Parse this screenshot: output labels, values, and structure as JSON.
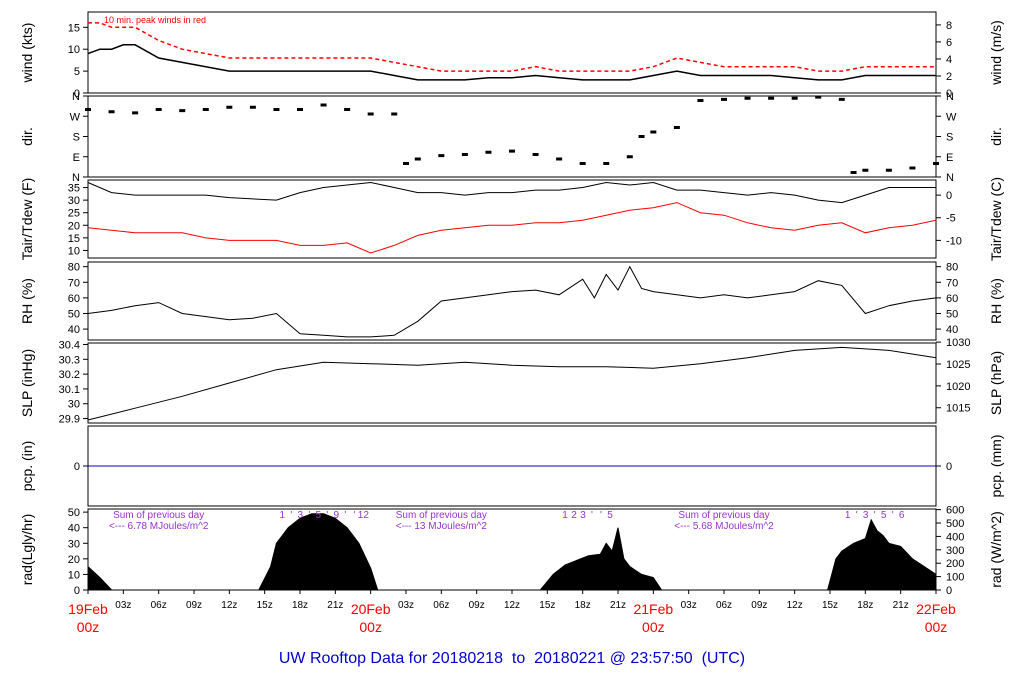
{
  "title": "UW Rooftop Data for 20180218  to  20180221 @ 23:57:50  (UTC)",
  "colors": {
    "axis": "#000000",
    "red": "#ff0000",
    "blue": "#0000cc",
    "purple": "#9933cc",
    "pcp_line": "#0000cc"
  },
  "time_axis": {
    "major_labels": [
      {
        "hour": 0,
        "date": "19Feb",
        "zone": "00z"
      },
      {
        "hour": 24,
        "date": "20Feb",
        "zone": "00z"
      },
      {
        "hour": 48,
        "date": "21Feb",
        "zone": "00z"
      },
      {
        "hour": 72,
        "date": "22Feb",
        "zone": "00z"
      }
    ],
    "minor_labels": [
      "03z",
      "06z",
      "09z",
      "12z",
      "15z",
      "18z",
      "21z"
    ]
  },
  "chart_data": [
    {
      "type": "line",
      "panel": "wind",
      "ylabel": "wind (kts)",
      "ylabel_right": "wind (m/s)",
      "ylim": [
        0,
        18.5
      ],
      "yticks": [
        0,
        5,
        10,
        15
      ],
      "yticks_right": [
        0,
        2,
        4,
        6,
        8
      ],
      "annotation": "10 min. peak winds in red",
      "x": [
        0,
        1,
        2,
        3,
        4,
        6,
        8,
        10,
        12,
        14,
        16,
        18,
        20,
        22,
        24,
        26,
        28,
        30,
        32,
        34,
        36,
        38,
        40,
        42,
        44,
        46,
        48,
        50,
        52,
        54,
        56,
        58,
        60,
        62,
        64,
        66,
        68,
        70,
        72
      ],
      "series": [
        {
          "values": [
            9,
            10,
            10,
            11,
            11,
            8,
            7,
            6,
            5,
            5,
            5,
            5,
            5,
            5,
            5,
            4,
            3,
            3,
            3,
            3.5,
            3.5,
            4,
            3.5,
            3,
            3,
            3,
            4,
            5,
            4,
            4,
            4,
            4,
            3.5,
            3,
            3,
            4,
            4,
            4,
            4
          ],
          "color": "#000000"
        },
        {
          "values": [
            16,
            16,
            15,
            15,
            15,
            12,
            10,
            9,
            8,
            8,
            8,
            8,
            8,
            8,
            8,
            7,
            6,
            5,
            5,
            5,
            5,
            6,
            5,
            5,
            5,
            5,
            6,
            8,
            7,
            6,
            6,
            6,
            6,
            5,
            5,
            6,
            6,
            6,
            6
          ],
          "color": "#ff0000"
        }
      ]
    },
    {
      "type": "scatter",
      "panel": "dir",
      "ylabel": "dir.",
      "ylabel_right": "dir.",
      "ylim": [
        0,
        360
      ],
      "ytick_labels": [
        "N",
        "E",
        "S",
        "W",
        "N"
      ],
      "x": [
        0,
        2,
        4,
        6,
        8,
        10,
        12,
        14,
        16,
        18,
        20,
        22,
        24,
        26,
        27,
        28,
        30,
        32,
        34,
        36,
        38,
        40,
        42,
        44,
        46,
        47,
        48,
        50,
        52,
        54,
        56,
        58,
        60,
        62,
        64,
        65,
        66,
        68,
        70,
        72
      ],
      "values": [
        300,
        290,
        285,
        300,
        295,
        300,
        310,
        310,
        300,
        300,
        320,
        300,
        280,
        280,
        60,
        80,
        95,
        100,
        110,
        115,
        100,
        80,
        60,
        60,
        90,
        180,
        200,
        220,
        340,
        345,
        350,
        350,
        350,
        355,
        345,
        20,
        30,
        30,
        40,
        60
      ]
    },
    {
      "type": "line",
      "panel": "temperature",
      "ylabel": "Tair/Tdew (F)",
      "ylabel_right": "Tair/Tdew (C)",
      "ylim": [
        7,
        38
      ],
      "yticks": [
        10,
        15,
        20,
        25,
        30,
        35
      ],
      "yticks_right": [
        0,
        -5,
        -10
      ],
      "x": [
        0,
        2,
        4,
        6,
        8,
        10,
        12,
        14,
        16,
        18,
        20,
        22,
        24,
        26,
        28,
        30,
        32,
        34,
        36,
        38,
        40,
        42,
        44,
        46,
        48,
        50,
        52,
        54,
        56,
        58,
        60,
        62,
        64,
        66,
        68,
        70,
        72
      ],
      "series": [
        {
          "values": [
            37,
            33,
            32,
            32,
            32,
            32,
            31,
            30.5,
            30,
            33,
            35,
            36,
            37,
            35,
            33,
            33,
            32,
            33,
            33,
            34,
            34,
            35,
            37,
            36,
            37,
            34,
            34,
            33,
            32,
            33,
            32,
            30,
            29,
            32,
            35,
            35,
            35
          ],
          "color": "#000000"
        },
        {
          "values": [
            19,
            18,
            17,
            17,
            17,
            15,
            14,
            14,
            14,
            12,
            12,
            13,
            9,
            12,
            16,
            18,
            19,
            20,
            20,
            21,
            21,
            22,
            24,
            26,
            27,
            29,
            25,
            24,
            21,
            19,
            18,
            20,
            21,
            17,
            19,
            20,
            22
          ],
          "color": "#ff0000"
        }
      ]
    },
    {
      "type": "line",
      "panel": "rh",
      "ylabel": "RH (%)",
      "ylabel_right": "RH (%)",
      "ylim": [
        33,
        83
      ],
      "yticks": [
        40,
        50,
        60,
        70,
        80
      ],
      "yticks_right": [
        40,
        50,
        60,
        70,
        80
      ],
      "x": [
        0,
        2,
        4,
        6,
        8,
        10,
        12,
        14,
        16,
        18,
        20,
        22,
        24,
        26,
        28,
        30,
        32,
        34,
        36,
        38,
        40,
        42,
        43,
        44,
        45,
        46,
        47,
        48,
        50,
        52,
        54,
        56,
        58,
        60,
        62,
        64,
        66,
        68,
        70,
        72
      ],
      "values": [
        50,
        52,
        55,
        57,
        50,
        48,
        46,
        47,
        50,
        37,
        36,
        35,
        35,
        36,
        45,
        58,
        60,
        62,
        64,
        65,
        62,
        72,
        60,
        75,
        65,
        80,
        66,
        64,
        62,
        60,
        62,
        60,
        62,
        64,
        71,
        68,
        50,
        55,
        58,
        60
      ],
      "color": "#000000"
    },
    {
      "type": "line",
      "panel": "slp",
      "ylabel": "SLP (inHg)",
      "ylabel_right": "SLP (hPa)",
      "ylim": [
        29.87,
        30.41
      ],
      "yticks": [
        29.9,
        30.0,
        30.1,
        30.2,
        30.3,
        30.4
      ],
      "yticks_right": [
        1015,
        1020,
        1025,
        1030
      ],
      "x": [
        0,
        4,
        8,
        12,
        16,
        20,
        24,
        28,
        32,
        36,
        40,
        44,
        48,
        52,
        56,
        60,
        64,
        68,
        72
      ],
      "values": [
        29.89,
        29.97,
        30.05,
        30.14,
        30.23,
        30.28,
        30.27,
        30.26,
        30.28,
        30.26,
        30.25,
        30.25,
        30.24,
        30.27,
        30.31,
        30.36,
        30.38,
        30.36,
        30.31
      ],
      "color": "#000000"
    },
    {
      "type": "line",
      "panel": "pcp",
      "ylabel": "pcp. (in)",
      "ylabel_right": "pcp. (mm)",
      "ytick_labels": [
        "0"
      ],
      "ytick_labels_right": [
        "0"
      ],
      "x": [
        0,
        72
      ],
      "values": [
        0,
        0
      ],
      "color": "#0000cc"
    },
    {
      "type": "area",
      "panel": "rad",
      "ylabel": "rad(Lgly/hr)",
      "ylabel_right": "rad (W/m^2)",
      "ylim": [
        0,
        52
      ],
      "yticks": [
        0,
        10,
        20,
        30,
        40,
        50
      ],
      "yticks_right": [
        0,
        100,
        200,
        300,
        400,
        500,
        600
      ],
      "x": [
        0,
        1,
        2,
        14.5,
        15.5,
        16,
        17,
        18,
        19,
        20,
        21,
        22,
        23,
        24,
        24.6,
        38.4,
        39.5,
        40.5,
        41.5,
        42.5,
        43.5,
        44,
        44.5,
        45,
        45.5,
        46,
        47,
        48,
        48.7,
        62.8,
        63.5,
        64,
        65,
        66,
        66.5,
        67,
        67.5,
        68,
        69,
        70,
        71,
        72
      ],
      "values": [
        15,
        8,
        0,
        0,
        15,
        30,
        40,
        46,
        49,
        49,
        46,
        40,
        30,
        14,
        0,
        0,
        10,
        16,
        19,
        22,
        23,
        30,
        25,
        40,
        20,
        15,
        10,
        8,
        0,
        0,
        20,
        25,
        30,
        33,
        45,
        38,
        35,
        30,
        28,
        20,
        15,
        10
      ],
      "color": "#000000",
      "annotations": [
        {
          "line1": "Sum of previous day",
          "line2": "<--- 6.78 MJoules/m^2",
          "day": 0
        },
        {
          "line1": "Sum of previous day",
          "line2": "<--- 13 MJoules/m^2",
          "day": 1
        },
        {
          "line1": "Sum of previous day",
          "line2": "<--- 5.68 MJoules/m^2",
          "day": 2
        }
      ],
      "top_markers": [
        {
          "labels": [
            "1",
            "'",
            "3",
            "'",
            "5",
            "'",
            "9",
            "'",
            "'",
            "12"
          ],
          "day": 0
        },
        {
          "labels": [
            "1",
            "2",
            "3",
            "'",
            "'",
            "5"
          ],
          "day": 1
        },
        {
          "labels": [
            "1",
            "'",
            "3",
            "'",
            "5",
            "'",
            "6"
          ],
          "day": 2
        }
      ]
    }
  ]
}
